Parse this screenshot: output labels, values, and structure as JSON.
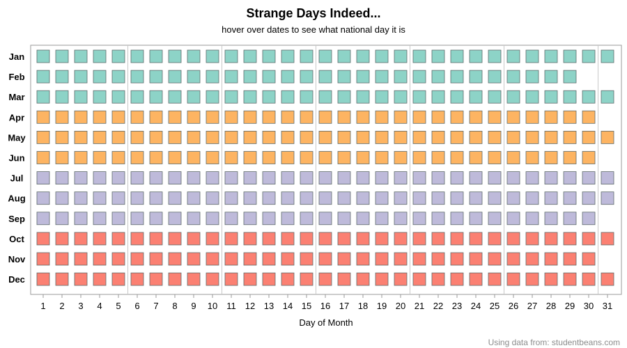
{
  "chart_data": {
    "type": "heatmap",
    "title": "Strange Days Indeed...",
    "subtitle": "hover over dates to see what national day it is",
    "xlabel": "Day of Month",
    "ylabel": "",
    "x_ticks": [
      1,
      2,
      3,
      4,
      5,
      6,
      7,
      8,
      9,
      10,
      11,
      12,
      13,
      14,
      15,
      16,
      17,
      18,
      19,
      20,
      21,
      22,
      23,
      24,
      25,
      26,
      27,
      28,
      29,
      30,
      31
    ],
    "xlim": [
      1,
      31
    ],
    "grid": "vertical reference lines every 5 days",
    "legend": "none",
    "months": [
      {
        "name": "Jan",
        "days": 31,
        "season": "winter"
      },
      {
        "name": "Feb",
        "days": 29,
        "season": "winter"
      },
      {
        "name": "Mar",
        "days": 31,
        "season": "winter"
      },
      {
        "name": "Apr",
        "days": 30,
        "season": "spring"
      },
      {
        "name": "May",
        "days": 31,
        "season": "spring"
      },
      {
        "name": "Jun",
        "days": 30,
        "season": "spring"
      },
      {
        "name": "Jul",
        "days": 31,
        "season": "summer"
      },
      {
        "name": "Aug",
        "days": 31,
        "season": "summer"
      },
      {
        "name": "Sep",
        "days": 30,
        "season": "summer"
      },
      {
        "name": "Oct",
        "days": 31,
        "season": "autumn"
      },
      {
        "name": "Nov",
        "days": 30,
        "season": "autumn"
      },
      {
        "name": "Dec",
        "days": 31,
        "season": "autumn"
      }
    ],
    "season_colors": {
      "winter": "#8dd3c7",
      "spring": "#fdb462",
      "summer": "#bebada",
      "autumn": "#fb8072"
    }
  },
  "footer": {
    "credit": "Using data from: studentbeans.com"
  }
}
